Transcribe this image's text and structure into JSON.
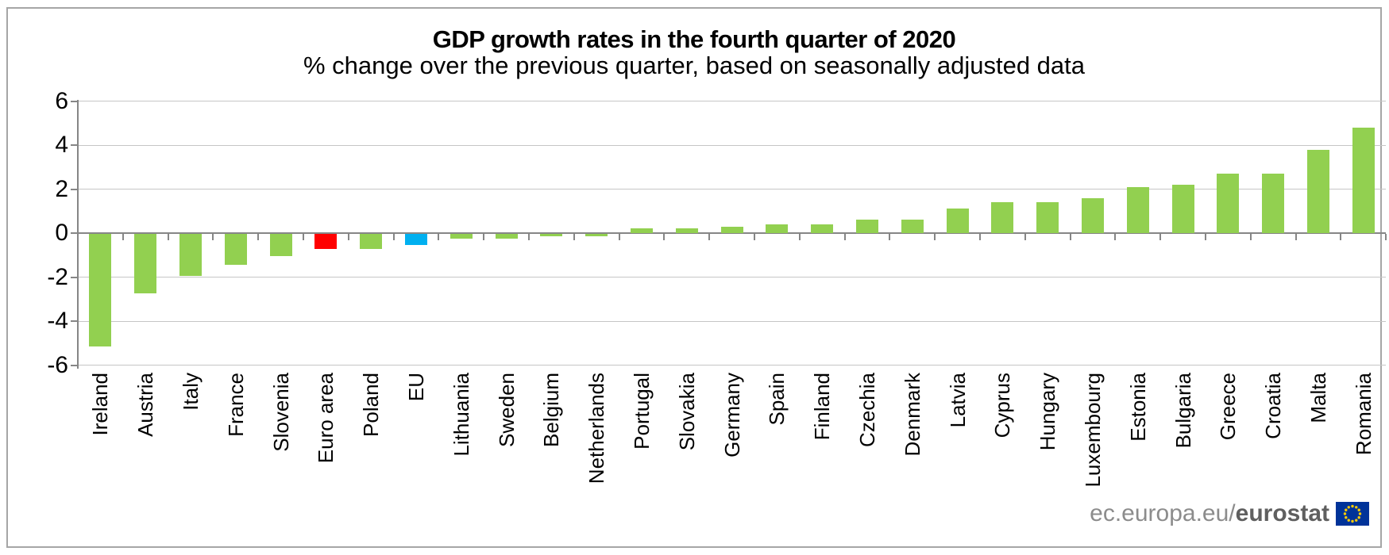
{
  "chart_data": {
    "type": "bar",
    "title": "GDP growth rates in the fourth quarter of 2020",
    "subtitle": "% change over the previous quarter, based on seasonally adjusted data",
    "categories": [
      "Ireland",
      "Austria",
      "Italy",
      "France",
      "Slovenia",
      "Euro area",
      "Poland",
      "EU",
      "Lithuania",
      "Sweden",
      "Belgium",
      "Netherlands",
      "Portugal",
      "Slovakia",
      "Germany",
      "Spain",
      "Finland",
      "Czechia",
      "Denmark",
      "Latvia",
      "Cyprus",
      "Hungary",
      "Luxembourg",
      "Estonia",
      "Bulgaria",
      "Greece",
      "Croatia",
      "Malta",
      "Romania"
    ],
    "values": [
      -5.1,
      -2.7,
      -1.9,
      -1.4,
      -1.0,
      -0.7,
      -0.7,
      -0.5,
      -0.2,
      -0.2,
      -0.1,
      -0.1,
      0.2,
      0.2,
      0.3,
      0.4,
      0.4,
      0.6,
      0.6,
      1.1,
      1.4,
      1.4,
      1.6,
      2.1,
      2.2,
      2.7,
      2.7,
      3.8,
      4.8
    ],
    "ylim": [
      -6,
      6
    ],
    "yticks": [
      6,
      4,
      2,
      0,
      -2,
      -4,
      -6
    ],
    "grid": true,
    "legend": false,
    "xlabel": "",
    "ylabel": ""
  },
  "colors": {
    "bar_default": "#92d050",
    "bar_euro_area": "#ff0000",
    "bar_eu": "#00b0f0",
    "axis": "#868686",
    "gridline": "#c6c6c6",
    "border": "#a6a6a6",
    "footer_text": "#8c8c8c",
    "flag_blue": "#003399",
    "flag_stars": "#ffcc00"
  },
  "special_bars": {
    "Euro area": "bar_euro_area",
    "EU": "bar_eu"
  },
  "footer": {
    "url_prefix": "ec.europa.eu/",
    "url_bold": "eurostat"
  }
}
